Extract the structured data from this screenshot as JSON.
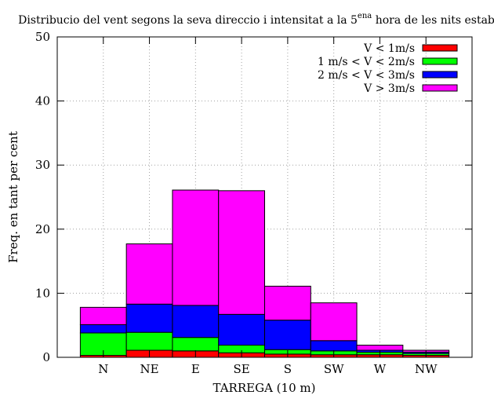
{
  "chart_data": {
    "type": "bar",
    "stacked": true,
    "title_main": "Distribucio del vent segons la seva direccio i intensitat a la 5",
    "title_sup": "ena",
    "title_end": " hora de les nits estables",
    "xlabel": "TARREGA (10 m)",
    "ylabel": "Freq. en tant per cent",
    "ylim": [
      0,
      50
    ],
    "yticks": [
      "0",
      "10",
      "20",
      "30",
      "40",
      "50"
    ],
    "grid": true,
    "legend_position": "top-right",
    "categories": [
      "N",
      "NE",
      "E",
      "SE",
      "S",
      "SW",
      "W",
      "NW"
    ],
    "series": [
      {
        "name": "V < 1m/s",
        "color": "#ff0000",
        "values": [
          0.3,
          1.1,
          1.0,
          0.7,
          0.5,
          0.4,
          0.4,
          0.3
        ]
      },
      {
        "name": "1 m/s < V < 2m/s",
        "color": "#00ff00",
        "values": [
          3.5,
          2.8,
          2.1,
          1.2,
          0.7,
          0.6,
          0.4,
          0.3
        ]
      },
      {
        "name": "2 m/s < V < 3m/s",
        "color": "#0000ff",
        "values": [
          1.3,
          4.4,
          5.0,
          4.8,
          4.6,
          1.6,
          0.3,
          0.2
        ]
      },
      {
        "name": "V > 3m/s",
        "color": "#ff00ff",
        "values": [
          2.7,
          9.4,
          18.0,
          19.3,
          5.3,
          5.9,
          0.8,
          0.3
        ]
      }
    ]
  }
}
